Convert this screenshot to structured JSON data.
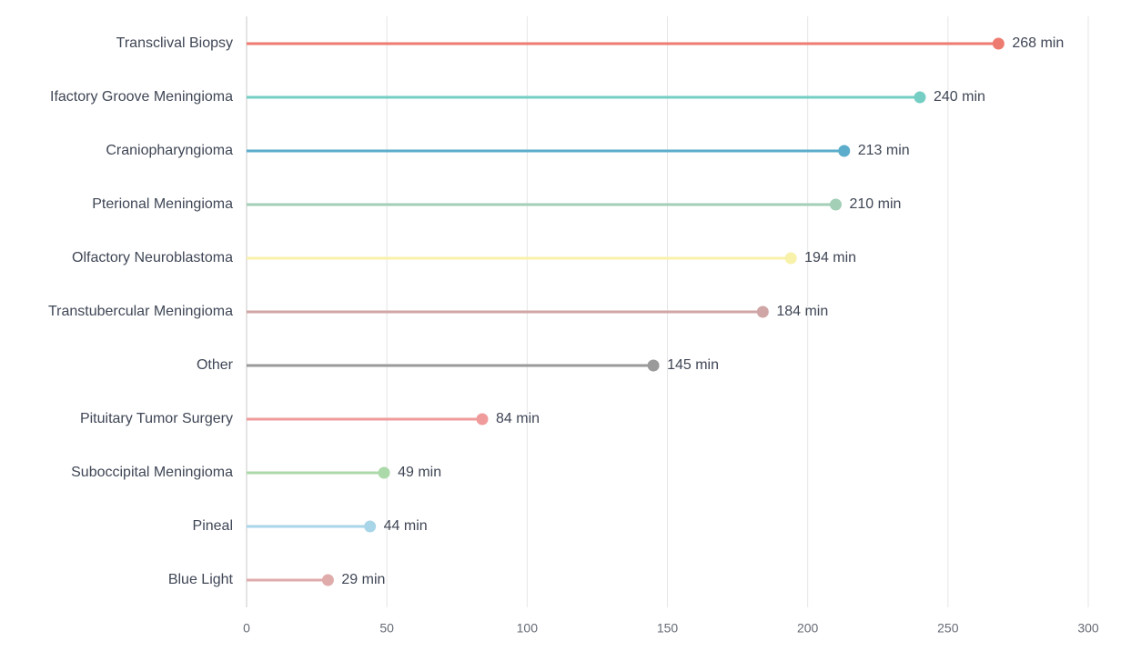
{
  "chart_data": {
    "type": "lollipop",
    "categories": [
      "Transclival Biopsy",
      "Ifactory Groove Meningioma",
      "Craniopharyngioma",
      "Pterional Meningioma",
      "Olfactory Neuroblastoma",
      "Transtubercular Meningioma",
      "Other",
      "Pituitary Tumor Surgery",
      "Suboccipital Meningioma",
      "Pineal",
      "Blue Light"
    ],
    "values": [
      268,
      240,
      213,
      210,
      194,
      184,
      145,
      84,
      49,
      44,
      29
    ],
    "value_labels": [
      "268 min",
      "240 min",
      "213 min",
      "210 min",
      "194 min",
      "184 min",
      "145 min",
      "84 min",
      "49 min",
      "44 min",
      "29 min"
    ],
    "colors": [
      "#ee7b70",
      "#74cec3",
      "#5badcb",
      "#a2cfb6",
      "#f8f1aa",
      "#cfa6a5",
      "#9a9a9a",
      "#f09b9b",
      "#acd9a9",
      "#a9d5e9",
      "#e0abab"
    ],
    "xlim": [
      0,
      300
    ],
    "xticks": [
      0,
      50,
      100,
      150,
      200,
      250,
      300
    ],
    "grid": true
  }
}
